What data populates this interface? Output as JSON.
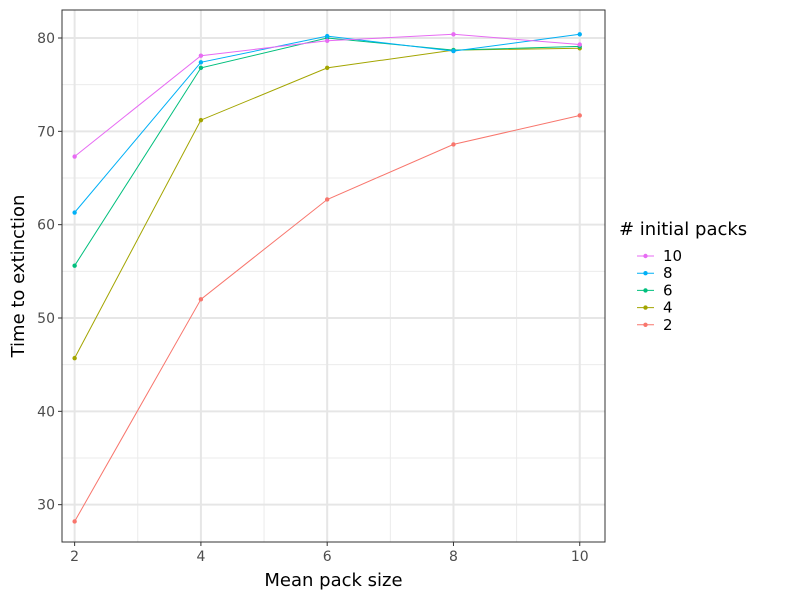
{
  "chart_data": {
    "type": "line",
    "xlabel": "Mean pack size",
    "ylabel": "Time to extinction",
    "x": [
      2,
      4,
      6,
      8,
      10
    ],
    "xticks": [
      "2",
      "4",
      "6",
      "8",
      "10"
    ],
    "yticks": [
      "30",
      "40",
      "50",
      "60",
      "70",
      "80"
    ],
    "xlim": [
      1.8,
      10.4
    ],
    "ylim": [
      26,
      83
    ],
    "grid": true,
    "legend": {
      "title": "# initial packs",
      "placement": "right"
    },
    "series": [
      {
        "name": "10",
        "color": "#E76BF3",
        "values": [
          67.3,
          78.1,
          79.7,
          80.4,
          79.3
        ]
      },
      {
        "name": "8",
        "color": "#00B0F6",
        "values": [
          61.3,
          77.4,
          80.2,
          78.6,
          80.4
        ]
      },
      {
        "name": "6",
        "color": "#00BF7D",
        "values": [
          55.6,
          76.8,
          80.0,
          78.7,
          79.1
        ]
      },
      {
        "name": "4",
        "color": "#A3A500",
        "values": [
          45.7,
          71.2,
          76.8,
          78.7,
          78.9
        ]
      },
      {
        "name": "2",
        "color": "#F8766D",
        "values": [
          28.2,
          52.0,
          62.7,
          68.6,
          71.7
        ]
      }
    ]
  }
}
